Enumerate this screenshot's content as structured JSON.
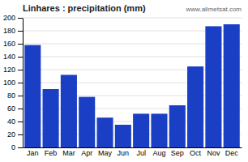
{
  "chart_data": {
    "type": "bar",
    "title": "Linhares : precipitation (mm)",
    "categories": [
      "Jan",
      "Feb",
      "Mar",
      "Apr",
      "May",
      "Jun",
      "Jul",
      "Aug",
      "Sep",
      "Oct",
      "Nov",
      "Dec"
    ],
    "values": [
      158,
      90,
      112,
      78,
      46,
      35,
      52,
      52,
      65,
      125,
      187,
      190
    ],
    "color": "#1a3fc4",
    "ylim": [
      0,
      200
    ],
    "yticks": [
      0,
      20,
      40,
      60,
      80,
      100,
      120,
      140,
      160,
      180,
      200
    ],
    "grid": true,
    "annotation": "www.allmetsat.com"
  }
}
